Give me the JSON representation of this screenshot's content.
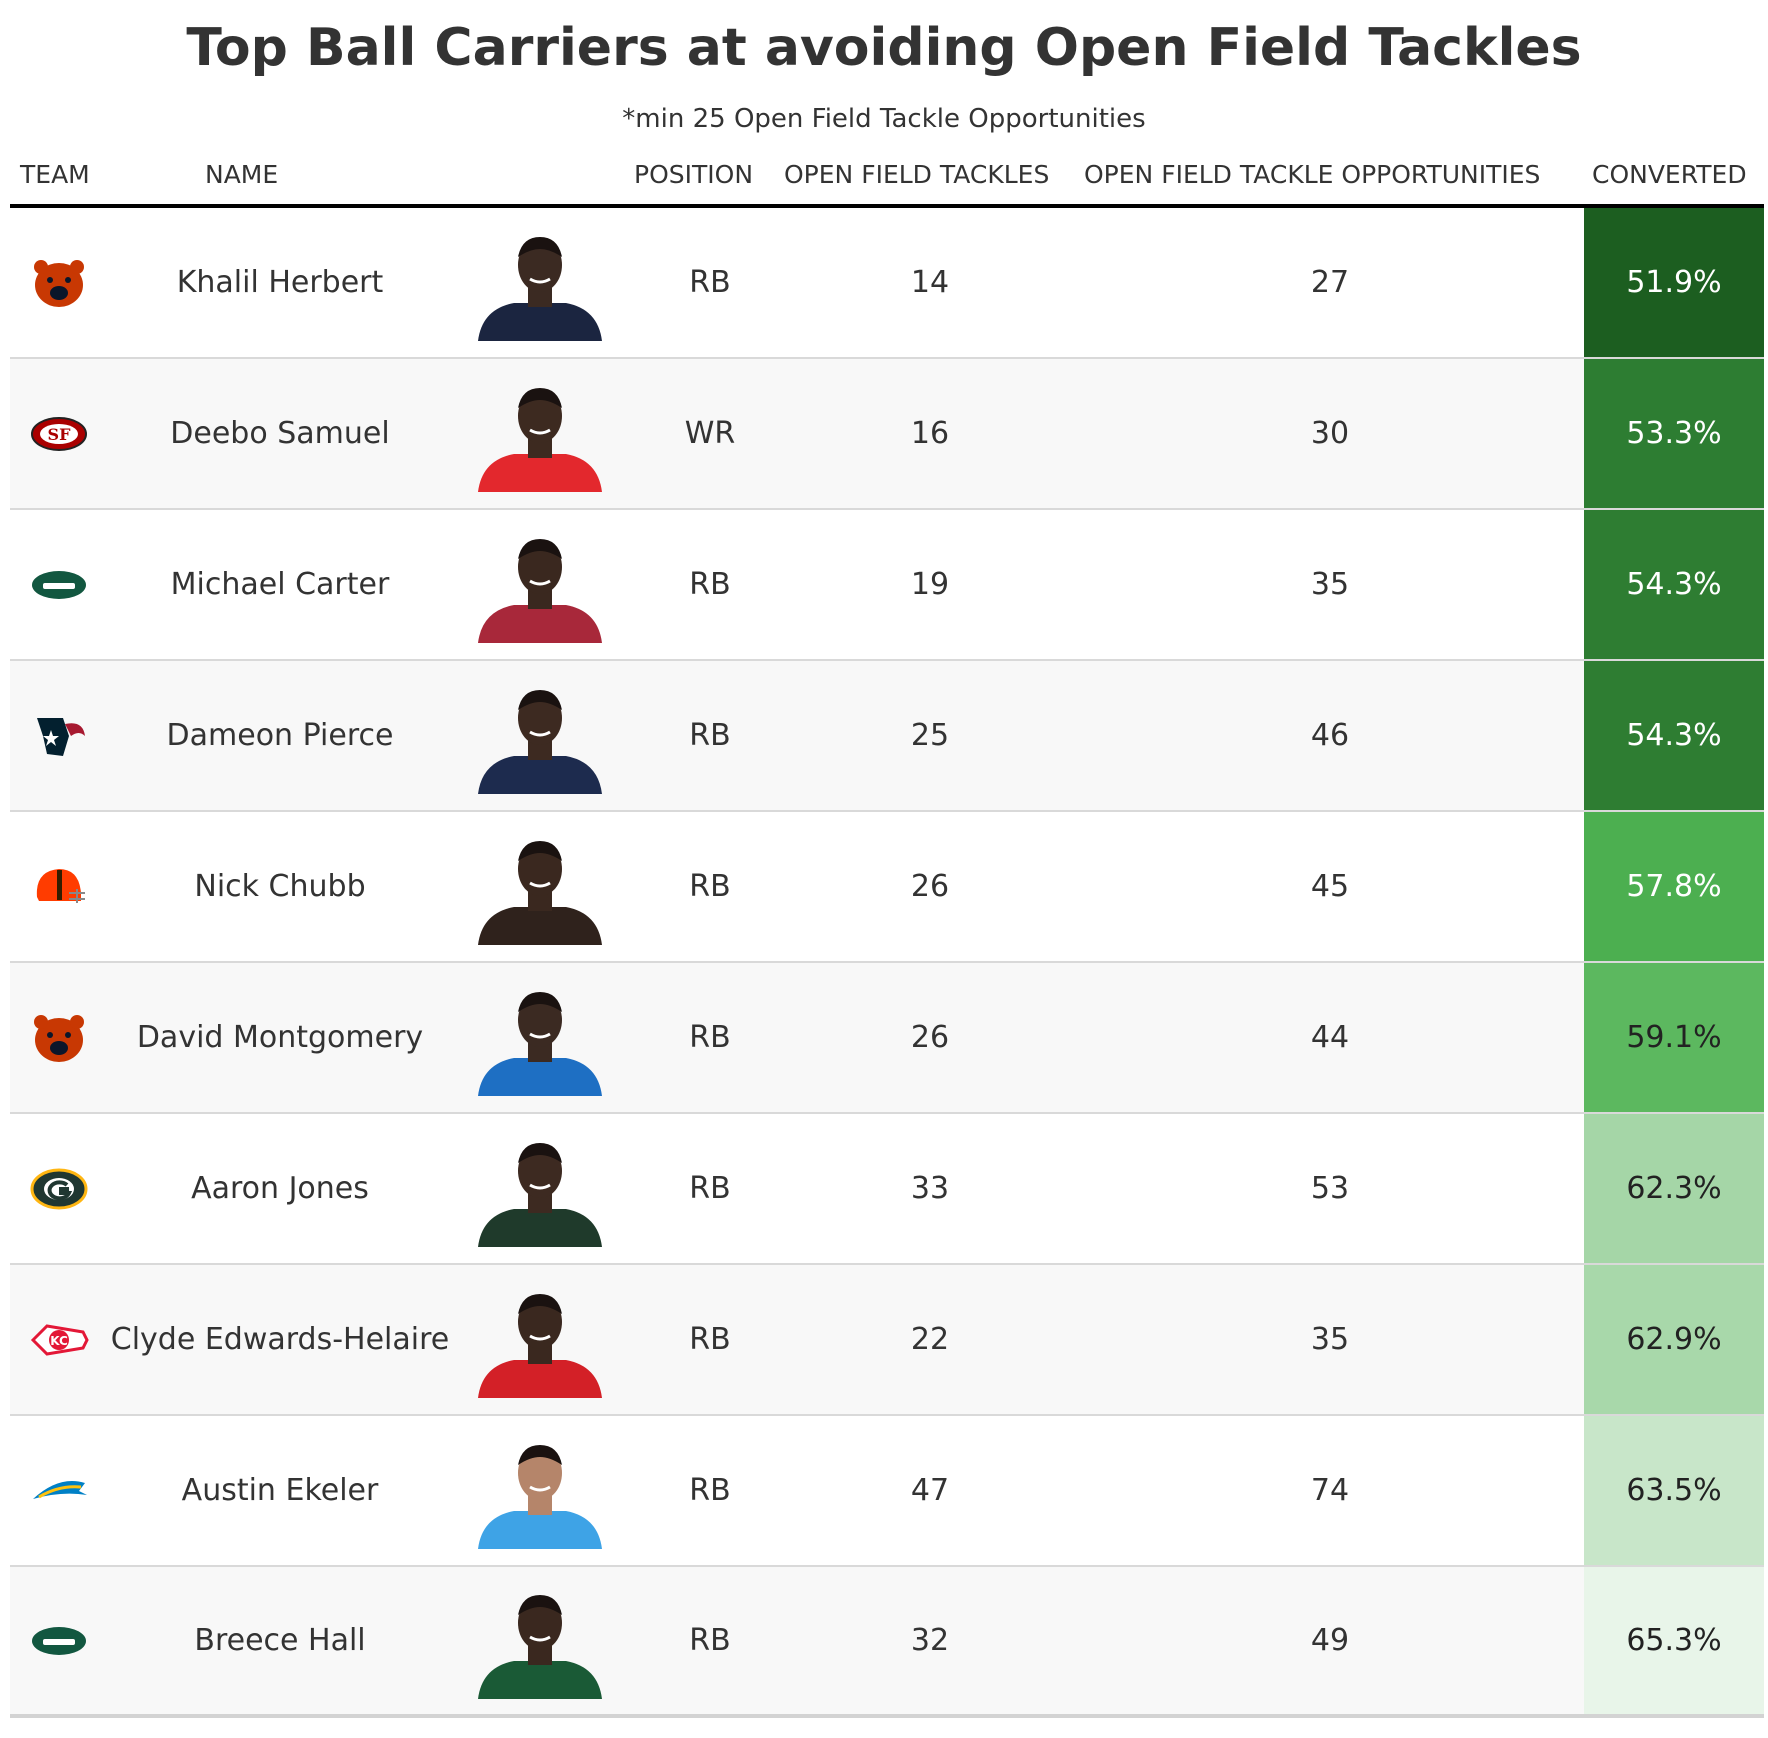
{
  "chart_data": {
    "type": "table",
    "title": "Top Ball Carriers at avoiding Open Field Tackles",
    "subtitle": "*min 25 Open Field Tackle Opportunities",
    "columns": [
      "TEAM",
      "NAME",
      "POSITION",
      "OPEN FIELD TACKLES",
      "OPEN FIELD TACKLE OPPORTUNITIES",
      "CONVERTED"
    ],
    "rows": [
      {
        "team": "bears",
        "name": "Khalil Herbert",
        "position": "RB",
        "open_field_tackles": "14",
        "opportunities": "27",
        "converted": "51.9%",
        "converted_value": 51.9,
        "team_color": "#C83803",
        "jersey_color": "#1b2540",
        "skin": "#3b2a22",
        "conv_bg": "#1c5e20",
        "conv_fg": "#ffffff"
      },
      {
        "team": "49ers",
        "name": "Deebo Samuel",
        "position": "WR",
        "open_field_tackles": "16",
        "opportunities": "30",
        "converted": "53.3%",
        "converted_value": 53.3,
        "team_color": "#AA0000",
        "jersey_color": "#e3282d",
        "skin": "#3d2a20",
        "conv_bg": "#2d7d32",
        "conv_fg": "#ffffff"
      },
      {
        "team": "jets",
        "name": "Michael Carter",
        "position": "RB",
        "open_field_tackles": "19",
        "opportunities": "35",
        "converted": "54.3%",
        "converted_value": 54.3,
        "team_color": "#125740",
        "jersey_color": "#a8283a",
        "skin": "#3a281f",
        "conv_bg": "#2e7d32",
        "conv_fg": "#ffffff"
      },
      {
        "team": "texans",
        "name": "Dameon Pierce",
        "position": "RB",
        "open_field_tackles": "25",
        "opportunities": "46",
        "converted": "54.3%",
        "converted_value": 54.3,
        "team_color": "#03202F",
        "jersey_color": "#1d2b4e",
        "skin": "#3d2a21",
        "conv_bg": "#2e7d32",
        "conv_fg": "#ffffff"
      },
      {
        "team": "browns",
        "name": "Nick Chubb",
        "position": "RB",
        "open_field_tackles": "26",
        "opportunities": "45",
        "converted": "57.8%",
        "converted_value": 57.8,
        "team_color": "#FF3C00",
        "jersey_color": "#2f221c",
        "skin": "#3a281f",
        "conv_bg": "#4caf50",
        "conv_fg": "#ffffff"
      },
      {
        "team": "bears",
        "name": "David Montgomery",
        "position": "RB",
        "open_field_tackles": "26",
        "opportunities": "44",
        "converted": "59.1%",
        "converted_value": 59.1,
        "team_color": "#C83803",
        "jersey_color": "#1e6fc3",
        "skin": "#3b2a22",
        "conv_bg": "#5cb85f",
        "conv_fg": "#222222"
      },
      {
        "team": "packers",
        "name": "Aaron Jones",
        "position": "RB",
        "open_field_tackles": "33",
        "opportunities": "53",
        "converted": "62.3%",
        "converted_value": 62.3,
        "team_color": "#203731",
        "jersey_color": "#1f3a2b",
        "skin": "#3d2a21",
        "conv_bg": "#a5d6a7",
        "conv_fg": "#222222"
      },
      {
        "team": "chiefs",
        "name": "Clyde Edwards-Helaire",
        "position": "RB",
        "open_field_tackles": "22",
        "opportunities": "35",
        "converted": "62.9%",
        "converted_value": 62.9,
        "team_color": "#E31837",
        "jersey_color": "#d32027",
        "skin": "#3a281f",
        "conv_bg": "#a8d8aa",
        "conv_fg": "#222222"
      },
      {
        "team": "chargers",
        "name": "Austin Ekeler",
        "position": "RB",
        "open_field_tackles": "47",
        "opportunities": "74",
        "converted": "63.5%",
        "converted_value": 63.5,
        "team_color": "#0080C6",
        "jersey_color": "#3ea3e6",
        "skin": "#b5856a",
        "conv_bg": "#c8e6c9",
        "conv_fg": "#222222"
      },
      {
        "team": "jets",
        "name": "Breece Hall",
        "position": "RB",
        "open_field_tackles": "32",
        "opportunities": "49",
        "converted": "65.3%",
        "converted_value": 65.3,
        "team_color": "#125740",
        "jersey_color": "#1a5a36",
        "skin": "#3a281f",
        "conv_bg": "#e8f5e9",
        "conv_fg": "#222222"
      }
    ]
  }
}
